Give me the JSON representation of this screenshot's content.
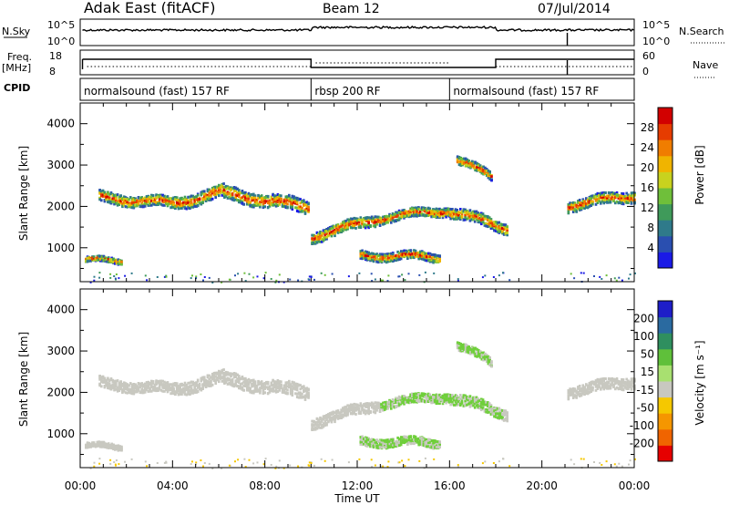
{
  "header": {
    "station": "Adak East (fitACF)",
    "beam": "Beam 12",
    "date": "07/Jul/2014"
  },
  "top_labels": {
    "nsky": "N.Sky",
    "nsky_hi": "10^5",
    "nsky_lo": "10^0",
    "nsearch": "N.Search",
    "nsearch_hi": "10^5",
    "nsearch_lo": "10^0",
    "freq": "Freq.",
    "freq_unit": "[MHz]",
    "freq_hi": "18",
    "freq_lo": "8",
    "nave": "Nave",
    "nave_hi": "60",
    "nave_lo": "0",
    "cpid": "CPID"
  },
  "cpid_segments": [
    {
      "start": 0,
      "end": 10,
      "label": "normalsound (fast) 157 RF"
    },
    {
      "start": 10,
      "end": 16,
      "label": "rbsp 200 RF"
    },
    {
      "start": 16,
      "end": 24,
      "label": "normalsound (fast) 157 RF"
    }
  ],
  "chart_data": [
    {
      "type": "heatmap",
      "name": "power",
      "ylabel": "Slant Range [km]",
      "xlabel": "Time UT",
      "xlim": [
        0,
        24
      ],
      "ylim": [
        180,
        4500
      ],
      "y_ticks": [
        "1000",
        "2000",
        "3000",
        "4000"
      ],
      "x_ticks": [
        "00:00",
        "04:00",
        "08:00",
        "12:00",
        "16:00",
        "20:00",
        "00:00"
      ],
      "colorbar": {
        "label": "Power [dB]",
        "ticks": [
          "4",
          "8",
          "12",
          "16",
          "20",
          "24",
          "28"
        ],
        "colors": [
          "#1a1ae6",
          "#2a4fb0",
          "#2f7a8a",
          "#3f9a5a",
          "#6fbf3a",
          "#c8d21e",
          "#f0b400",
          "#f07d00",
          "#e63c00",
          "#d20000"
        ]
      },
      "echo_bands": [
        {
          "t_start": 0.8,
          "t_end": 4.0,
          "range_start": 2250,
          "range_end": 2100,
          "width": 260
        },
        {
          "t_start": 4.0,
          "t_end": 6.2,
          "range_start": 2100,
          "range_end": 2400,
          "width": 300
        },
        {
          "t_start": 6.2,
          "t_end": 9.9,
          "range_start": 2350,
          "range_end": 2000,
          "width": 320
        },
        {
          "t_start": 10.0,
          "t_end": 13.0,
          "range_start": 1300,
          "range_end": 1750,
          "width": 260
        },
        {
          "t_start": 13.0,
          "t_end": 16.0,
          "range_start": 1750,
          "range_end": 1950,
          "width": 220
        },
        {
          "t_start": 16.0,
          "t_end": 18.5,
          "range_start": 1900,
          "range_end": 1500,
          "width": 260
        },
        {
          "t_start": 21.1,
          "t_end": 24.0,
          "range_start": 2050,
          "range_end": 2300,
          "width": 260
        },
        {
          "t_start": 12.1,
          "t_end": 15.6,
          "range_start": 850,
          "range_end": 800,
          "width": 200
        },
        {
          "t_start": 16.3,
          "t_end": 17.8,
          "range_start": 3150,
          "range_end": 2750,
          "width": 200
        },
        {
          "t_start": 0.2,
          "t_end": 1.8,
          "range_start": 720,
          "range_end": 720,
          "width": 120
        }
      ]
    },
    {
      "type": "heatmap",
      "name": "velocity",
      "ylabel": "Slant Range [km]",
      "xlabel": "Time UT",
      "xlim": [
        0,
        24
      ],
      "ylim": [
        180,
        4500
      ],
      "y_ticks": [
        "1000",
        "2000",
        "3000",
        "4000"
      ],
      "x_ticks": [
        "00:00",
        "04:00",
        "08:00",
        "12:00",
        "16:00",
        "20:00",
        "00:00"
      ],
      "colorbar": {
        "label": "Velocity [m s⁻¹]",
        "ticks": [
          "200",
          "100",
          "50",
          "15",
          "-15",
          "-50",
          "-100",
          "-200"
        ],
        "colors": [
          "#1e1ec8",
          "#2a6aa0",
          "#2f8f5f",
          "#5fc03a",
          "#a8e070",
          "#c8c8c0",
          "#f5c800",
          "#f59600",
          "#f06400",
          "#e60000"
        ]
      }
    }
  ]
}
